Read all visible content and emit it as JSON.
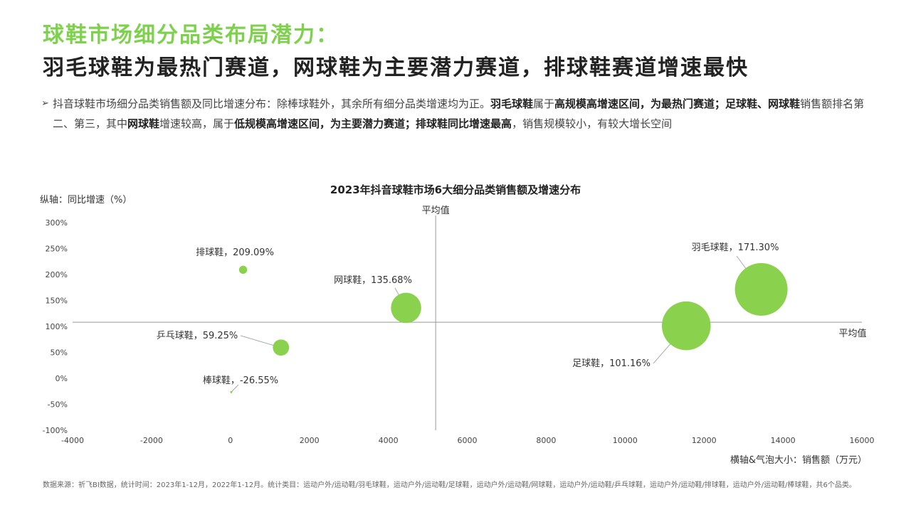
{
  "title": {
    "line1": "球鞋市场细分品类布局潜力：",
    "line2": "羽毛球鞋为最热门赛道，网球鞋为主要潜力赛道，排球鞋赛道增速最快"
  },
  "summary": {
    "arrow": "➢",
    "segments": [
      {
        "text": "抖音球鞋市场细分品类销售额及同比增速分布：除棒球鞋外，其余所有细分品类增速均为正。",
        "bold": false
      },
      {
        "text": "羽毛球鞋",
        "bold": true
      },
      {
        "text": "属于",
        "bold": false
      },
      {
        "text": "高规模高增速区间，为最热门赛道；足球鞋、网球鞋",
        "bold": true
      },
      {
        "text": "销售额排名第二、第三，其中",
        "bold": false
      },
      {
        "text": "网球鞋",
        "bold": true
      },
      {
        "text": "增速较高，属于",
        "bold": false
      },
      {
        "text": "低规模高增速区间，为主要潜力赛道；排球鞋同比增速最高",
        "bold": true
      },
      {
        "text": "，销售规模较小，有较大增长空间",
        "bold": false
      }
    ]
  },
  "chart_data": {
    "type": "scatter",
    "title": "2023年抖音球鞋市场6大细分品类销售额及增速分布",
    "ylabel": "纵轴：同比增速（%）",
    "xlabel": "横轴&气泡大小：销售额（万元）",
    "xlim": [
      -4000,
      16000
    ],
    "ylim": [
      -100,
      300
    ],
    "xticks": [
      -4000,
      -2000,
      0,
      2000,
      4000,
      6000,
      8000,
      10000,
      12000,
      14000,
      16000
    ],
    "yticks": [
      "300%",
      "250%",
      "200%",
      "150%",
      "100%",
      "50%",
      "0%",
      "-50%",
      "-100%"
    ],
    "yticks_values": [
      300,
      250,
      200,
      150,
      100,
      50,
      0,
      -50,
      -100
    ],
    "avg_x": 5200,
    "avg_y": 108,
    "avg_label_x": "平均值",
    "avg_label_y": "平均值",
    "grid": false,
    "bubble_color": "#8ad14e",
    "points": [
      {
        "name": "排球鞋",
        "label": "排球鞋，209.09%",
        "x": 320,
        "y": 209.09
      },
      {
        "name": "网球鞋",
        "label": "网球鞋，135.68%",
        "x": 4450,
        "y": 135.68
      },
      {
        "name": "乒乓球鞋",
        "label": "乒乓球鞋，59.25%",
        "x": 1280,
        "y": 59.25
      },
      {
        "name": "棒球鞋",
        "label": "棒球鞋，-26.55%",
        "x": 20,
        "y": -26.55
      },
      {
        "name": "足球鞋",
        "label": "足球鞋，101.16%",
        "x": 11550,
        "y": 101.16
      },
      {
        "name": "羽毛球鞋",
        "label": "羽毛球鞋，171.30%",
        "x": 13450,
        "y": 171.3
      }
    ]
  },
  "footnote": "数据来源：祈飞BI数据，统计时间：2023年1-12月，2022年1-12月。统计类目：运动户外/运动鞋/羽毛球鞋，运动户外/运动鞋/足球鞋，运动户外/运动鞋/网球鞋，运动户外/运动鞋/乒乓球鞋，运动户外/运动鞋/排球鞋，运动户外/运动鞋/棒球鞋，共6个品类。"
}
